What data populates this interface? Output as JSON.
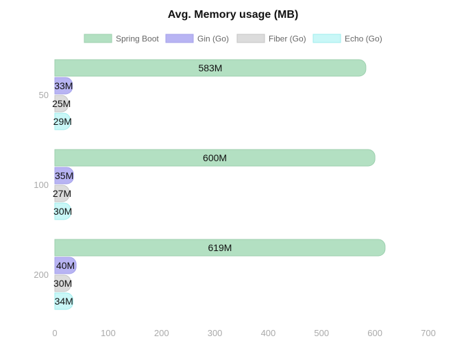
{
  "chart_data": {
    "type": "bar",
    "orientation": "horizontal",
    "title": "Avg. Memory usage (MB)",
    "categories": [
      "50",
      "100",
      "200"
    ],
    "series": [
      {
        "name": "Spring Boot",
        "values": [
          583,
          600,
          619
        ],
        "labels": [
          "583M",
          "600M",
          "619M"
        ],
        "fill": "#b3e0c2",
        "stroke": "#9ccfae"
      },
      {
        "name": "Gin (Go)",
        "values": [
          33,
          35,
          40
        ],
        "labels": [
          "33M",
          "35M",
          "40M"
        ],
        "fill": "#b8b4f3",
        "stroke": "#a3a0ea"
      },
      {
        "name": "Fiber (Go)",
        "values": [
          25,
          27,
          30
        ],
        "labels": [
          "25M",
          "27M",
          "30M"
        ],
        "fill": "#dcdcdc",
        "stroke": "#c4c4c4"
      },
      {
        "name": "Echo (Go)",
        "values": [
          29,
          30,
          34
        ],
        "labels": [
          "29M",
          "30M",
          "34M"
        ],
        "fill": "#c9f7f7",
        "stroke": "#9eecec"
      }
    ],
    "xlim": [
      0,
      700
    ],
    "xticks": [
      "0",
      "100",
      "200",
      "300",
      "400",
      "500",
      "600",
      "700"
    ],
    "grid": false,
    "legend_position": "top"
  }
}
